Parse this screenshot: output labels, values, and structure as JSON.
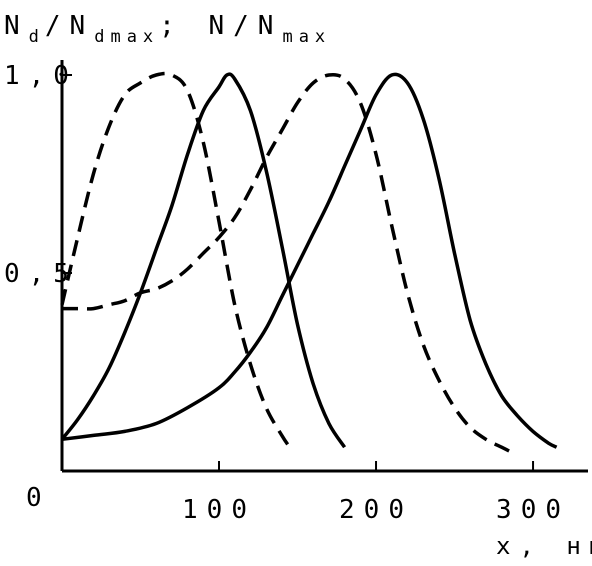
{
  "chart_data": {
    "type": "line",
    "ylabel": {
      "part1": "N",
      "part1_sub": "d",
      "part2": "/N",
      "part2_sub": "dmax",
      "part3": "; N/N",
      "part3_sub": "max"
    },
    "xlabel": "x, нм",
    "origin_label": "0",
    "xticks": [
      {
        "value": 100,
        "label": "100"
      },
      {
        "value": 200,
        "label": "200"
      },
      {
        "value": 300,
        "label": "300"
      }
    ],
    "yticks": [
      {
        "value": 0.5,
        "label": "0,5"
      },
      {
        "value": 1.0,
        "label": "1,0"
      }
    ],
    "xlim": [
      0,
      335
    ],
    "ylim": [
      0,
      1.0
    ],
    "grid": false,
    "series": [
      {
        "style": "dashed",
        "points": [
          [
            0,
            0.41
          ],
          [
            10,
            0.41
          ],
          [
            20,
            0.41
          ],
          [
            30,
            0.42
          ],
          [
            40,
            0.43
          ],
          [
            50,
            0.45
          ],
          [
            60,
            0.46
          ],
          [
            70,
            0.48
          ],
          [
            80,
            0.51
          ],
          [
            90,
            0.55
          ],
          [
            100,
            0.59
          ],
          [
            110,
            0.64
          ],
          [
            120,
            0.71
          ],
          [
            130,
            0.79
          ],
          [
            140,
            0.86
          ],
          [
            150,
            0.93
          ],
          [
            160,
            0.98
          ],
          [
            170,
            1.0
          ],
          [
            180,
            0.99
          ],
          [
            190,
            0.93
          ],
          [
            200,
            0.8
          ],
          [
            210,
            0.62
          ],
          [
            220,
            0.45
          ],
          [
            230,
            0.32
          ],
          [
            240,
            0.23
          ],
          [
            250,
            0.16
          ],
          [
            260,
            0.11
          ],
          [
            270,
            0.08
          ],
          [
            280,
            0.06
          ],
          [
            285,
            0.05
          ]
        ]
      },
      {
        "style": "solid",
        "points": [
          [
            0,
            0.08
          ],
          [
            20,
            0.09
          ],
          [
            40,
            0.1
          ],
          [
            60,
            0.12
          ],
          [
            80,
            0.16
          ],
          [
            100,
            0.21
          ],
          [
            110,
            0.25
          ],
          [
            120,
            0.3
          ],
          [
            130,
            0.36
          ],
          [
            140,
            0.44
          ],
          [
            150,
            0.52
          ],
          [
            160,
            0.6
          ],
          [
            170,
            0.68
          ],
          [
            180,
            0.77
          ],
          [
            190,
            0.86
          ],
          [
            200,
            0.95
          ],
          [
            210,
            1.0
          ],
          [
            220,
            0.98
          ],
          [
            230,
            0.89
          ],
          [
            240,
            0.74
          ],
          [
            250,
            0.55
          ],
          [
            260,
            0.38
          ],
          [
            270,
            0.27
          ],
          [
            280,
            0.19
          ],
          [
            290,
            0.14
          ],
          [
            300,
            0.1
          ],
          [
            310,
            0.07
          ],
          [
            315,
            0.06
          ]
        ]
      },
      {
        "style": "dashed",
        "points": [
          [
            0,
            0.42
          ],
          [
            10,
            0.59
          ],
          [
            20,
            0.75
          ],
          [
            30,
            0.87
          ],
          [
            40,
            0.95
          ],
          [
            50,
            0.98
          ],
          [
            60,
            1.0
          ],
          [
            70,
            1.0
          ],
          [
            80,
            0.96
          ],
          [
            90,
            0.83
          ],
          [
            100,
            0.63
          ],
          [
            110,
            0.42
          ],
          [
            120,
            0.27
          ],
          [
            130,
            0.16
          ],
          [
            140,
            0.09
          ],
          [
            145,
            0.06
          ]
        ]
      },
      {
        "style": "solid",
        "points": [
          [
            0,
            0.08
          ],
          [
            10,
            0.13
          ],
          [
            20,
            0.19
          ],
          [
            30,
            0.26
          ],
          [
            40,
            0.35
          ],
          [
            50,
            0.45
          ],
          [
            60,
            0.56
          ],
          [
            70,
            0.67
          ],
          [
            80,
            0.8
          ],
          [
            90,
            0.91
          ],
          [
            100,
            0.97
          ],
          [
            105,
            1.0
          ],
          [
            110,
            0.99
          ],
          [
            120,
            0.91
          ],
          [
            130,
            0.76
          ],
          [
            140,
            0.57
          ],
          [
            150,
            0.37
          ],
          [
            160,
            0.22
          ],
          [
            170,
            0.12
          ],
          [
            180,
            0.06
          ]
        ]
      }
    ]
  }
}
